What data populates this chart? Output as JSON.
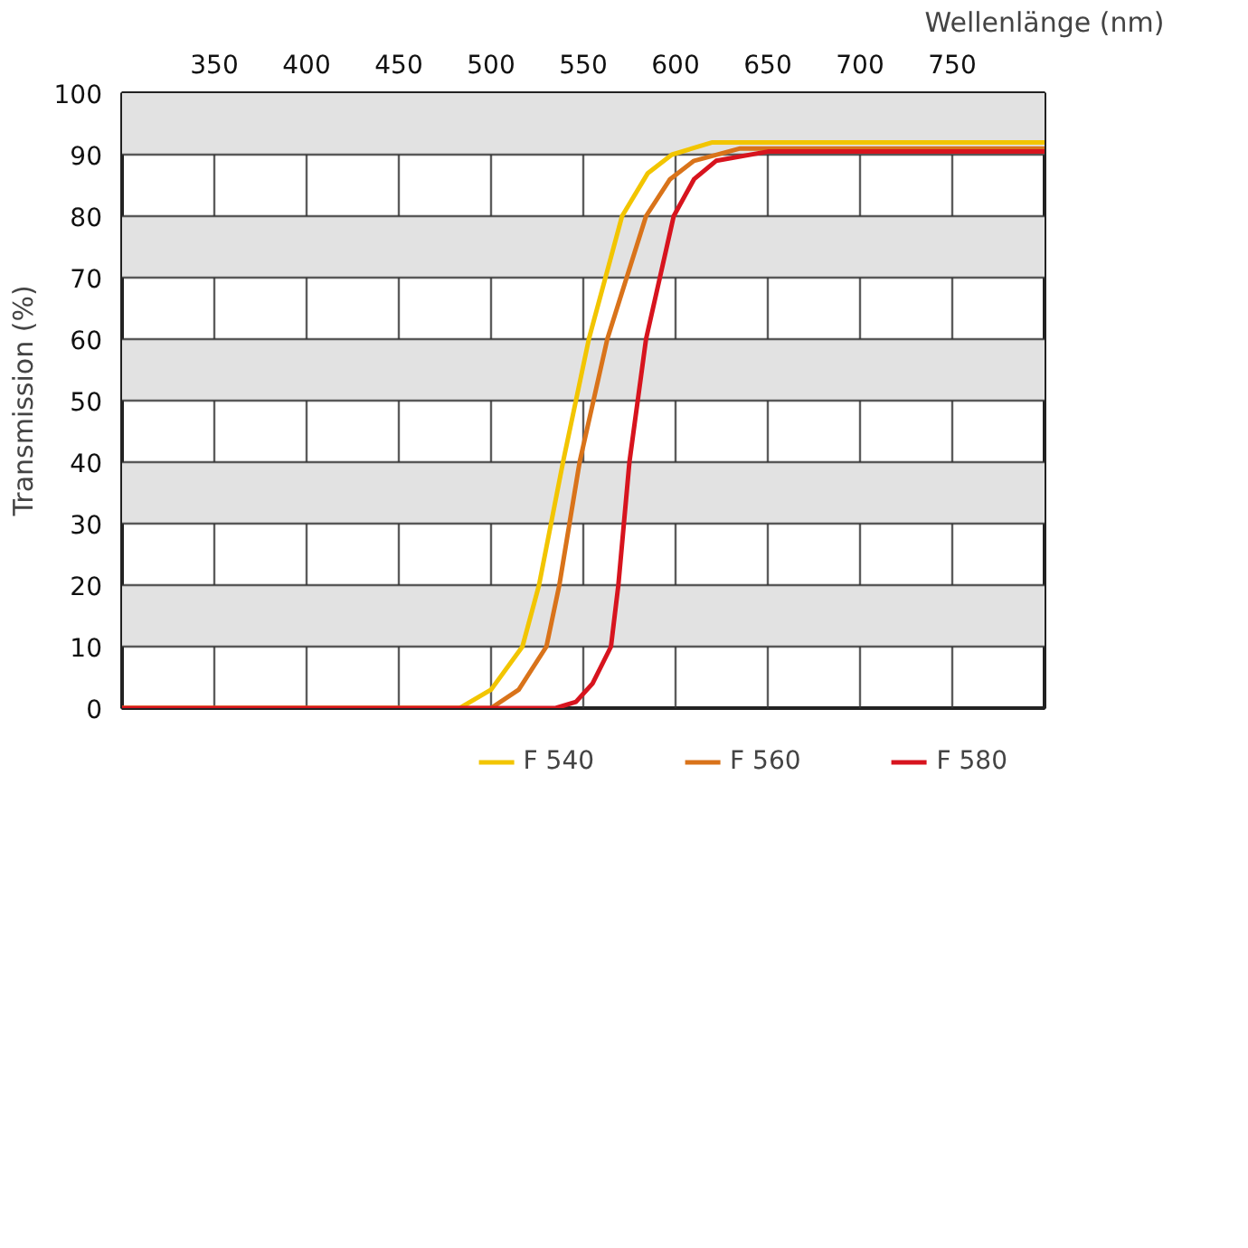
{
  "chart_data": {
    "type": "line",
    "xlabel": "Wellenlänge (nm)",
    "ylabel": "Transmission (%)",
    "xlim": [
      300,
      800
    ],
    "xticks": [
      350,
      400,
      450,
      500,
      550,
      600,
      650,
      700,
      750
    ],
    "ylim": [
      0,
      100
    ],
    "yticks": [
      0,
      10,
      20,
      30,
      40,
      50,
      60,
      70,
      80,
      90,
      100
    ],
    "grid": true,
    "legend": "bottom",
    "marker": "none",
    "line_style": "solid",
    "series": [
      {
        "name": "F 540",
        "color": "#f2c500",
        "x": [
          300,
          483,
          500,
          517,
          526,
          539,
          553,
          571,
          585,
          598,
          620,
          650,
          800
        ],
        "values": [
          0,
          0,
          3,
          10,
          20,
          40,
          60,
          80,
          87,
          90,
          92,
          92,
          92
        ]
      },
      {
        "name": "F 560",
        "color": "#d9731a",
        "x": [
          300,
          500,
          515,
          530,
          537,
          548,
          563,
          584,
          597,
          610,
          635,
          660,
          800
        ],
        "values": [
          0,
          0,
          3,
          10,
          20,
          40,
          60,
          80,
          86,
          89,
          91,
          91,
          91
        ]
      },
      {
        "name": "F 580",
        "color": "#d7141e",
        "x": [
          300,
          535,
          546,
          555,
          565,
          569,
          575,
          584,
          599,
          610,
          622,
          650,
          800
        ],
        "values": [
          0,
          0,
          1,
          4,
          10,
          20,
          40,
          60,
          80,
          86,
          89,
          90.5,
          90.5
        ]
      }
    ]
  }
}
